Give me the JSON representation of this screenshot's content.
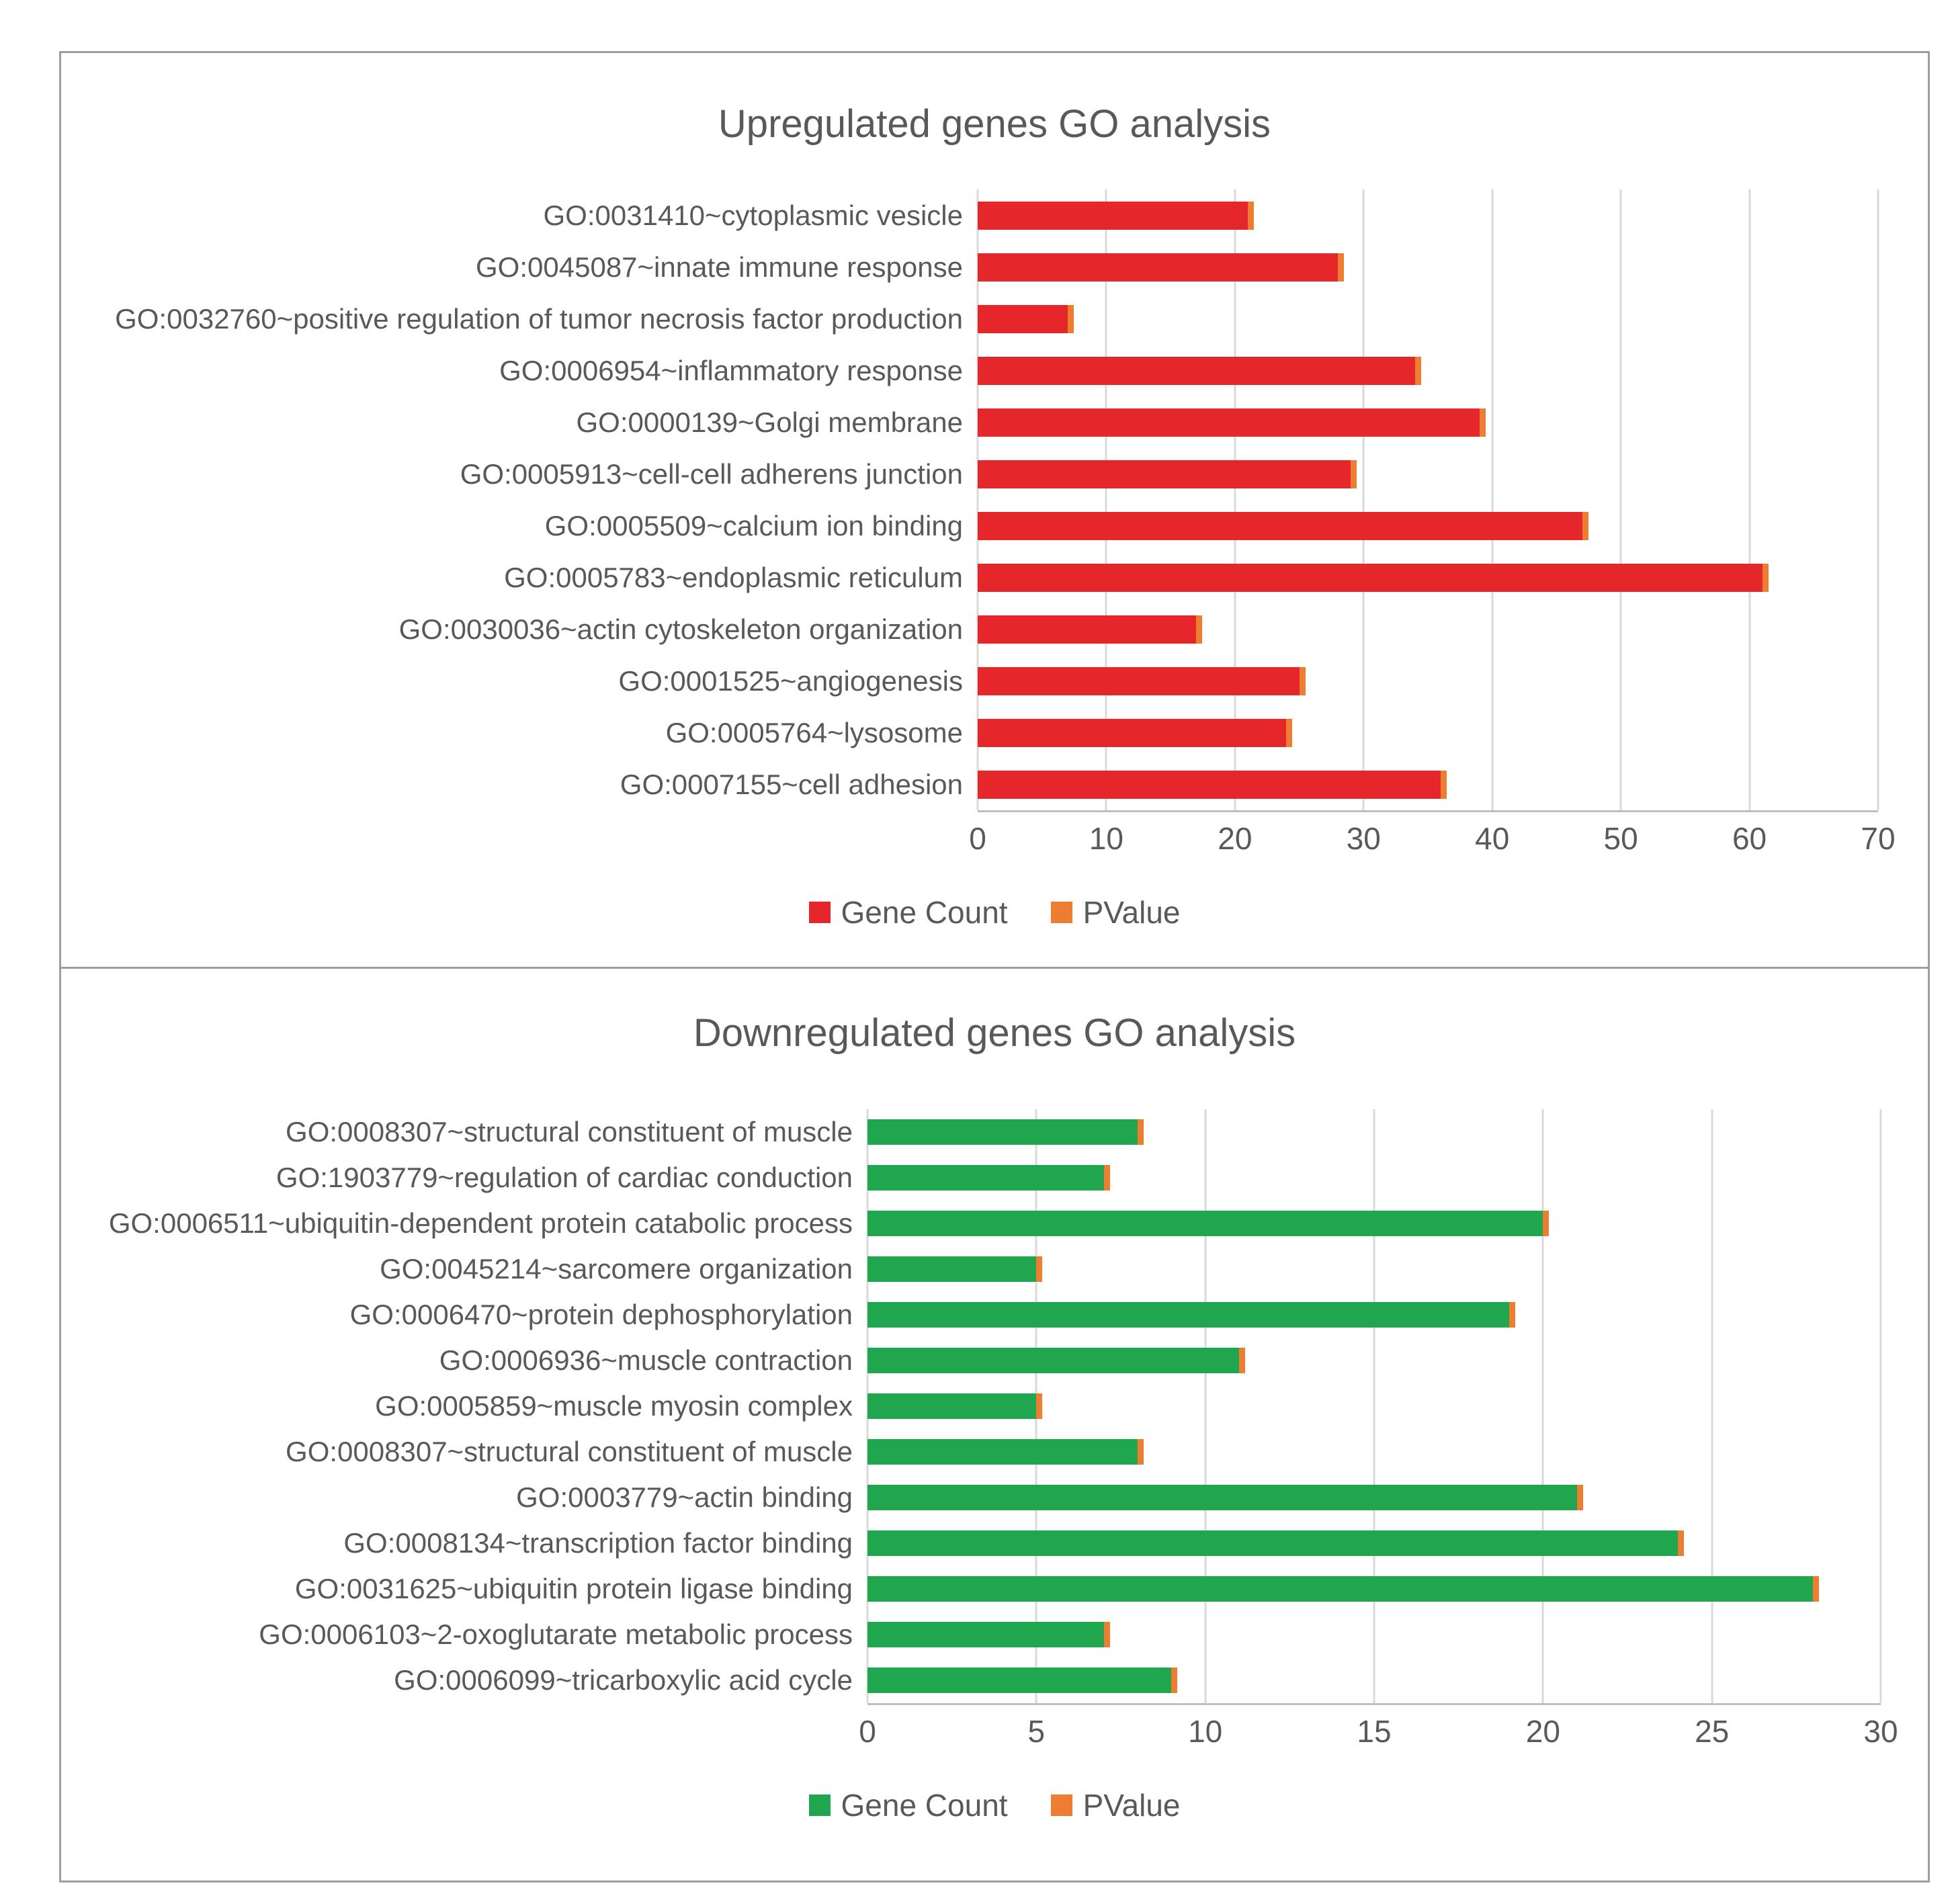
{
  "figure": {
    "background": "#ffffff",
    "border_color": "#9e9e9e",
    "text_color": "#595959",
    "gridline_color": "#d9d9d9"
  },
  "chart_data": [
    {
      "type": "bar",
      "orientation": "horizontal",
      "stacked": true,
      "title": "Upregulated genes GO analysis",
      "categories": [
        "GO:0031410~cytoplasmic vesicle",
        "GO:0045087~innate immune response",
        "GO:0032760~positive regulation of tumor necrosis factor production",
        "GO:0006954~inflammatory response",
        "GO:0000139~Golgi membrane",
        "GO:0005913~cell-cell adherens junction",
        "GO:0005509~calcium ion binding",
        "GO:0005783~endoplasmic reticulum",
        "GO:0030036~actin cytoskeleton organization",
        "GO:0001525~angiogenesis",
        "GO:0005764~lysosome",
        "GO:0007155~cell adhesion"
      ],
      "series": [
        {
          "name": "Gene Count",
          "color": "#e5262a",
          "values": [
            21,
            28,
            7,
            34,
            39,
            29,
            47,
            61,
            17,
            25,
            24,
            36
          ]
        },
        {
          "name": "PValue",
          "color": "#ed7d31",
          "values": [
            0.05,
            0.05,
            0.05,
            0.05,
            0.05,
            0.05,
            0.05,
            0.05,
            0.05,
            0.05,
            0.05,
            0.05
          ]
        }
      ],
      "xlim": [
        0,
        70
      ],
      "xticks": [
        0,
        10,
        20,
        30,
        40,
        50,
        60,
        70
      ],
      "grid": true,
      "legend_position": "bottom"
    },
    {
      "type": "bar",
      "orientation": "horizontal",
      "stacked": true,
      "title": "Downregulated genes GO analysis",
      "categories": [
        "GO:0008307~structural constituent of muscle",
        "GO:1903779~regulation of cardiac conduction",
        "GO:0006511~ubiquitin-dependent protein catabolic process",
        "GO:0045214~sarcomere organization",
        "GO:0006470~protein dephosphorylation",
        "GO:0006936~muscle contraction",
        "GO:0005859~muscle myosin complex",
        "GO:0008307~structural constituent of muscle",
        "GO:0003779~actin binding",
        "GO:0008134~transcription factor binding",
        "GO:0031625~ubiquitin protein ligase binding",
        "GO:0006103~2-oxoglutarate metabolic process",
        "GO:0006099~tricarboxylic acid cycle"
      ],
      "series": [
        {
          "name": "Gene Count",
          "color": "#20a64e",
          "values": [
            8,
            7,
            20,
            5,
            19,
            11,
            5,
            8,
            21,
            24,
            28,
            7,
            9
          ]
        },
        {
          "name": "PValue",
          "color": "#ed7d31",
          "values": [
            0.05,
            0.05,
            0.05,
            0.05,
            0.05,
            0.05,
            0.05,
            0.05,
            0.05,
            0.05,
            0.05,
            0.05,
            0.05
          ]
        }
      ],
      "xlim": [
        0,
        30
      ],
      "xticks": [
        0,
        5,
        10,
        15,
        20,
        25,
        30
      ],
      "grid": true,
      "legend_position": "bottom"
    }
  ]
}
